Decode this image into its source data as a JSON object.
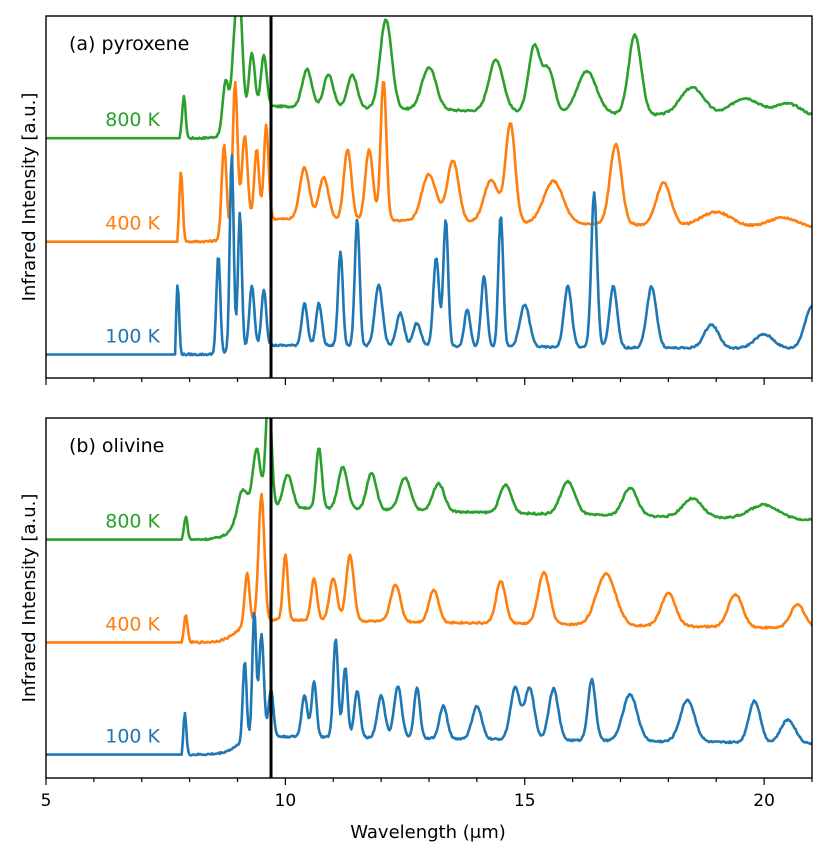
{
  "chart_data": [
    {
      "type": "line",
      "title": "(a) pyroxene",
      "xlabel": "",
      "ylabel": "Infrared Intensity [a.u.]",
      "xlim": [
        5,
        21
      ],
      "x_ticks": [
        5,
        10,
        15,
        20
      ],
      "x_tick_labels": [],
      "yticks_visible": false,
      "grid": false,
      "vertical_line_x": 9.7,
      "series": [
        {
          "name": "800 K",
          "color": "#2ca02c",
          "offset": 2.3,
          "baseline_until": 7.8,
          "peaks": [
            [
              7.88,
              0.45,
              0.035
            ],
            [
              8.75,
              0.55,
              0.06
            ],
            [
              8.95,
              0.9,
              0.07
            ],
            [
              9.05,
              1.0,
              0.06
            ],
            [
              9.3,
              0.6,
              0.06
            ],
            [
              9.55,
              0.55,
              0.06
            ],
            [
              10.45,
              0.4,
              0.1
            ],
            [
              10.9,
              0.35,
              0.1
            ],
            [
              11.4,
              0.35,
              0.1
            ],
            [
              12.1,
              0.95,
              0.12
            ],
            [
              13.0,
              0.45,
              0.15
            ],
            [
              14.4,
              0.55,
              0.15
            ],
            [
              15.2,
              0.7,
              0.12
            ],
            [
              15.5,
              0.45,
              0.12
            ],
            [
              16.3,
              0.45,
              0.2
            ],
            [
              17.3,
              0.85,
              0.13
            ],
            [
              18.5,
              0.3,
              0.25
            ],
            [
              19.6,
              0.2,
              0.3
            ],
            [
              20.5,
              0.15,
              0.3
            ]
          ],
          "tail_level": 0.35
        },
        {
          "name": "400 K",
          "color": "#ff7f0e",
          "offset": 1.2,
          "baseline_until": 7.75,
          "peaks": [
            [
              7.82,
              0.75,
              0.035
            ],
            [
              8.72,
              1.0,
              0.05
            ],
            [
              8.95,
              1.6,
              0.05
            ],
            [
              9.15,
              0.95,
              0.06
            ],
            [
              9.4,
              0.75,
              0.05
            ],
            [
              9.6,
              1.0,
              0.05
            ],
            [
              10.4,
              0.55,
              0.1
            ],
            [
              10.8,
              0.45,
              0.1
            ],
            [
              11.3,
              0.75,
              0.08
            ],
            [
              11.75,
              0.75,
              0.08
            ],
            [
              12.05,
              1.5,
              0.06
            ],
            [
              13.0,
              0.5,
              0.15
            ],
            [
              13.5,
              0.65,
              0.12
            ],
            [
              14.3,
              0.45,
              0.15
            ],
            [
              14.7,
              1.05,
              0.1
            ],
            [
              15.6,
              0.45,
              0.2
            ],
            [
              16.9,
              0.85,
              0.12
            ],
            [
              17.9,
              0.45,
              0.15
            ],
            [
              19.0,
              0.15,
              0.3
            ],
            [
              20.4,
              0.1,
              0.3
            ]
          ],
          "tail_level": 0.25
        },
        {
          "name": "100 K",
          "color": "#1f77b4",
          "offset": 0.0,
          "baseline_until": 7.7,
          "peaks": [
            [
              7.75,
              0.75,
              0.03
            ],
            [
              8.6,
              1.05,
              0.04
            ],
            [
              8.88,
              2.1,
              0.04
            ],
            [
              9.05,
              1.45,
              0.04
            ],
            [
              9.3,
              0.65,
              0.05
            ],
            [
              9.55,
              0.6,
              0.05
            ],
            [
              10.4,
              0.45,
              0.06
            ],
            [
              10.7,
              0.45,
              0.06
            ],
            [
              11.15,
              1.0,
              0.05
            ],
            [
              11.5,
              1.35,
              0.05
            ],
            [
              11.95,
              0.65,
              0.08
            ],
            [
              12.4,
              0.35,
              0.08
            ],
            [
              12.75,
              0.25,
              0.08
            ],
            [
              13.15,
              0.95,
              0.06
            ],
            [
              13.35,
              1.35,
              0.05
            ],
            [
              13.8,
              0.4,
              0.06
            ],
            [
              14.15,
              0.75,
              0.06
            ],
            [
              14.5,
              1.4,
              0.05
            ],
            [
              15.0,
              0.45,
              0.1
            ],
            [
              15.9,
              0.65,
              0.08
            ],
            [
              16.45,
              1.65,
              0.06
            ],
            [
              16.85,
              0.65,
              0.08
            ],
            [
              17.65,
              0.65,
              0.1
            ],
            [
              18.9,
              0.25,
              0.15
            ],
            [
              20.0,
              0.15,
              0.2
            ],
            [
              21.0,
              0.45,
              0.15
            ]
          ],
          "tail_level": 0.1
        }
      ]
    },
    {
      "type": "line",
      "title": "(b) olivine",
      "xlabel": "Wavelength ($\\mu$m)",
      "ylabel": "Infrared Intensity [a.u.]",
      "xlim": [
        5,
        21
      ],
      "x_ticks": [
        5,
        10,
        15,
        20
      ],
      "x_tick_labels": [
        "5",
        "10",
        "15",
        "20"
      ],
      "yticks_visible": false,
      "grid": false,
      "vertical_line_x": 9.7,
      "series": [
        {
          "name": "800 K",
          "color": "#2ca02c",
          "offset": 2.3,
          "baseline_until": 7.85,
          "peaks": [
            [
              7.92,
              0.25,
              0.035
            ],
            [
              9.1,
              0.3,
              0.1
            ],
            [
              9.4,
              0.65,
              0.08
            ],
            [
              9.65,
              1.25,
              0.06
            ],
            [
              10.05,
              0.35,
              0.1
            ],
            [
              10.7,
              0.65,
              0.06
            ],
            [
              11.2,
              0.45,
              0.1
            ],
            [
              11.8,
              0.4,
              0.1
            ],
            [
              12.5,
              0.35,
              0.12
            ],
            [
              13.2,
              0.3,
              0.12
            ],
            [
              14.6,
              0.3,
              0.12
            ],
            [
              15.9,
              0.35,
              0.15
            ],
            [
              17.2,
              0.3,
              0.15
            ],
            [
              18.5,
              0.2,
              0.2
            ],
            [
              20.0,
              0.15,
              0.3
            ]
          ],
          "tail_level": 0.35
        },
        {
          "name": "400 K",
          "color": "#ff7f0e",
          "offset": 1.2,
          "baseline_until": 7.85,
          "peaks": [
            [
              7.92,
              0.3,
              0.035
            ],
            [
              9.2,
              0.55,
              0.05
            ],
            [
              9.5,
              1.35,
              0.06
            ],
            [
              10.0,
              0.7,
              0.05
            ],
            [
              10.6,
              0.45,
              0.06
            ],
            [
              11.0,
              0.45,
              0.08
            ],
            [
              11.35,
              0.7,
              0.08
            ],
            [
              12.3,
              0.4,
              0.1
            ],
            [
              13.1,
              0.35,
              0.1
            ],
            [
              14.5,
              0.45,
              0.1
            ],
            [
              15.4,
              0.55,
              0.12
            ],
            [
              16.7,
              0.55,
              0.2
            ],
            [
              18.0,
              0.35,
              0.15
            ],
            [
              19.4,
              0.35,
              0.15
            ],
            [
              20.7,
              0.25,
              0.15
            ]
          ],
          "tail_level": 0.25
        },
        {
          "name": "100 K",
          "color": "#1f77b4",
          "offset": 0.0,
          "baseline_until": 7.85,
          "peaks": [
            [
              7.9,
              0.45,
              0.03
            ],
            [
              9.15,
              0.85,
              0.04
            ],
            [
              9.35,
              1.35,
              0.04
            ],
            [
              9.5,
              1.1,
              0.05
            ],
            [
              9.7,
              0.5,
              0.05
            ],
            [
              10.4,
              0.45,
              0.06
            ],
            [
              10.6,
              0.6,
              0.05
            ],
            [
              11.05,
              1.05,
              0.05
            ],
            [
              11.25,
              0.75,
              0.05
            ],
            [
              11.5,
              0.5,
              0.06
            ],
            [
              12.0,
              0.45,
              0.08
            ],
            [
              12.35,
              0.55,
              0.08
            ],
            [
              12.75,
              0.55,
              0.06
            ],
            [
              13.3,
              0.35,
              0.08
            ],
            [
              14.0,
              0.35,
              0.1
            ],
            [
              14.8,
              0.55,
              0.1
            ],
            [
              15.1,
              0.55,
              0.1
            ],
            [
              15.6,
              0.55,
              0.1
            ],
            [
              16.4,
              0.65,
              0.08
            ],
            [
              17.2,
              0.5,
              0.15
            ],
            [
              18.4,
              0.45,
              0.15
            ],
            [
              19.8,
              0.45,
              0.12
            ],
            [
              20.5,
              0.25,
              0.15
            ]
          ],
          "tail_level": 0.2
        }
      ]
    }
  ]
}
